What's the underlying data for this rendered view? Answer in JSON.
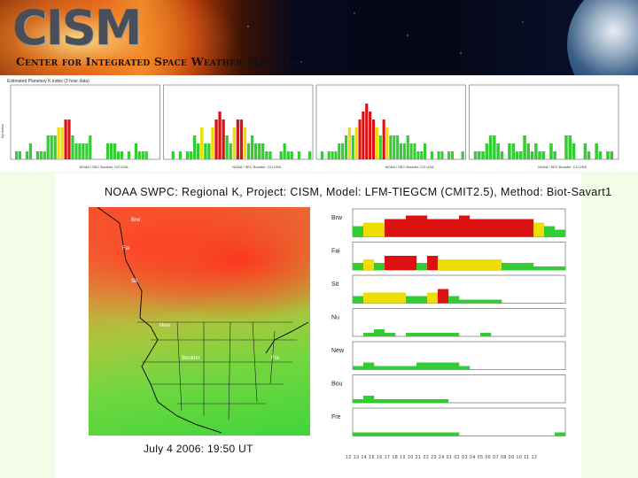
{
  "header": {
    "logo_text": "CISM",
    "subtitle": "Center for Integrated Space Weather Modeling",
    "colors": {
      "flare": "#e88a2a",
      "space": "#06081c"
    }
  },
  "top_chart": {
    "title": "Estimated Planetary K index (3 hour data)",
    "ylabel": "Kp index",
    "colors": {
      "green": "#33cc33",
      "yellow": "#eedd00",
      "red": "#dd1111"
    },
    "panels": [
      {
        "values": [
          0,
          1,
          1,
          0,
          1,
          2,
          0,
          1,
          1,
          1,
          3,
          3,
          3,
          4,
          4,
          5,
          5,
          3,
          2,
          2,
          2,
          2,
          3,
          0,
          0,
          0,
          0,
          2,
          2,
          2,
          1,
          1,
          0,
          1,
          0,
          2,
          1,
          1,
          1,
          0,
          0,
          0
        ],
        "xlabel_right": "NOAA / SEC Boulder, CO USA"
      },
      {
        "values": [
          0,
          0,
          1,
          0,
          1,
          0,
          1,
          1,
          3,
          2,
          4,
          2,
          2,
          4,
          5,
          6,
          5,
          3,
          2,
          4,
          5,
          5,
          4,
          2,
          3,
          2,
          2,
          2,
          1,
          1,
          0,
          0,
          1,
          2,
          1,
          1,
          0,
          1,
          0,
          0,
          1
        ],
        "xlabel_right": "NOAA / SEC Boulder, CO USA"
      },
      {
        "values": [
          0,
          1,
          0,
          1,
          1,
          1,
          2,
          2,
          3,
          4,
          3,
          4,
          5,
          6,
          7,
          6,
          5,
          4,
          3,
          5,
          4,
          3,
          3,
          3,
          2,
          2,
          3,
          2,
          2,
          1,
          1,
          2,
          0,
          1,
          0,
          1,
          1,
          0,
          1,
          1,
          0,
          0,
          1
        ],
        "xlabel_right": "NOAA / SEC Boulder, CO USA"
      },
      {
        "values": [
          0,
          1,
          1,
          1,
          2,
          3,
          3,
          2,
          1,
          0,
          2,
          2,
          1,
          1,
          3,
          2,
          1,
          2,
          1,
          1,
          0,
          2,
          1,
          0,
          0,
          3,
          3,
          2,
          0,
          0,
          2,
          1,
          0,
          2,
          1,
          0,
          1,
          1,
          0
        ],
        "xlabel_right": "NOAA / SEC Boulder, CO USA"
      }
    ]
  },
  "panel": {
    "title": "NOAA SWPC: Regional K, Project: CISM, Model: LFM-TIEGCM (CMIT2.5), Method: Biot-Savart1",
    "map_caption": "July 4 2006: 19:50 UT",
    "map_labels": [
      "Brw",
      "Fai",
      "Sit",
      "New",
      "Boulder",
      "Fre"
    ],
    "stations": [
      {
        "name": "Brw",
        "colors": [
          "g",
          "y",
          "y",
          "r",
          "r",
          "r",
          "r",
          "r",
          "r",
          "r",
          "r",
          "r",
          "r",
          "r",
          "r",
          "r",
          "r",
          "y",
          "g",
          "g"
        ],
        "heights": [
          3,
          4,
          4,
          5,
          5,
          6,
          6,
          5,
          5,
          5,
          6,
          5,
          5,
          5,
          5,
          5,
          5,
          4,
          3,
          2
        ]
      },
      {
        "name": "Fai",
        "colors": [
          "g",
          "y",
          "g",
          "r",
          "r",
          "r",
          "g",
          "r",
          "y",
          "y",
          "y",
          "y",
          "y",
          "y",
          "g",
          "g",
          "g",
          "g",
          "g",
          "g"
        ],
        "heights": [
          2,
          3,
          2,
          4,
          4,
          4,
          2,
          4,
          3,
          3,
          3,
          3,
          3,
          3,
          2,
          2,
          2,
          1,
          1,
          1
        ]
      },
      {
        "name": "Sit",
        "colors": [
          "g",
          "y",
          "y",
          "y",
          "y",
          "g",
          "g",
          "y",
          "r",
          "g",
          "g",
          "g",
          "g",
          "g",
          "g",
          "g",
          "g",
          "g",
          "g",
          "g"
        ],
        "heights": [
          2,
          3,
          3,
          3,
          3,
          2,
          2,
          3,
          4,
          2,
          1,
          1,
          1,
          1,
          0,
          0,
          0,
          0,
          0,
          0
        ]
      },
      {
        "name": "Nu",
        "colors": [
          "g",
          "g",
          "g",
          "g",
          "g",
          "g",
          "g",
          "g",
          "g",
          "g",
          "g",
          "g",
          "g",
          "g",
          "g",
          "g",
          "g",
          "g",
          "g",
          "g"
        ],
        "heights": [
          0,
          1,
          2,
          1,
          0,
          1,
          1,
          1,
          1,
          1,
          0,
          0,
          1,
          0,
          0,
          0,
          0,
          0,
          0,
          0
        ]
      },
      {
        "name": "New",
        "colors": [
          "g",
          "g",
          "g",
          "g",
          "g",
          "g",
          "g",
          "g",
          "g",
          "g",
          "g",
          "g",
          "g",
          "g",
          "g",
          "g",
          "g",
          "g",
          "g",
          "g"
        ],
        "heights": [
          1,
          2,
          1,
          1,
          1,
          1,
          2,
          2,
          2,
          2,
          1,
          0,
          0,
          0,
          0,
          0,
          0,
          0,
          0,
          0
        ]
      },
      {
        "name": "Bou",
        "colors": [
          "g",
          "g",
          "g",
          "g",
          "g",
          "g",
          "g",
          "g",
          "g",
          "g",
          "g",
          "g",
          "g",
          "g",
          "g",
          "g",
          "g",
          "g",
          "g",
          "g"
        ],
        "heights": [
          1,
          2,
          1,
          1,
          1,
          1,
          1,
          1,
          1,
          0,
          0,
          0,
          0,
          0,
          0,
          0,
          0,
          0,
          0,
          0
        ]
      },
      {
        "name": "Fre",
        "colors": [
          "g",
          "g",
          "g",
          "g",
          "g",
          "g",
          "g",
          "g",
          "g",
          "g",
          "g",
          "g",
          "g",
          "g",
          "g",
          "g",
          "g",
          "g",
          "g",
          "g"
        ],
        "heights": [
          1,
          1,
          1,
          1,
          1,
          1,
          1,
          1,
          1,
          1,
          0,
          0,
          0,
          0,
          0,
          0,
          0,
          0,
          0,
          1
        ]
      }
    ],
    "axis_ticks": "12 13 14 15 16 17 18 19 20 21 22 23 24 01 02 03 04 05 06 07 08 09 10 11 12"
  }
}
